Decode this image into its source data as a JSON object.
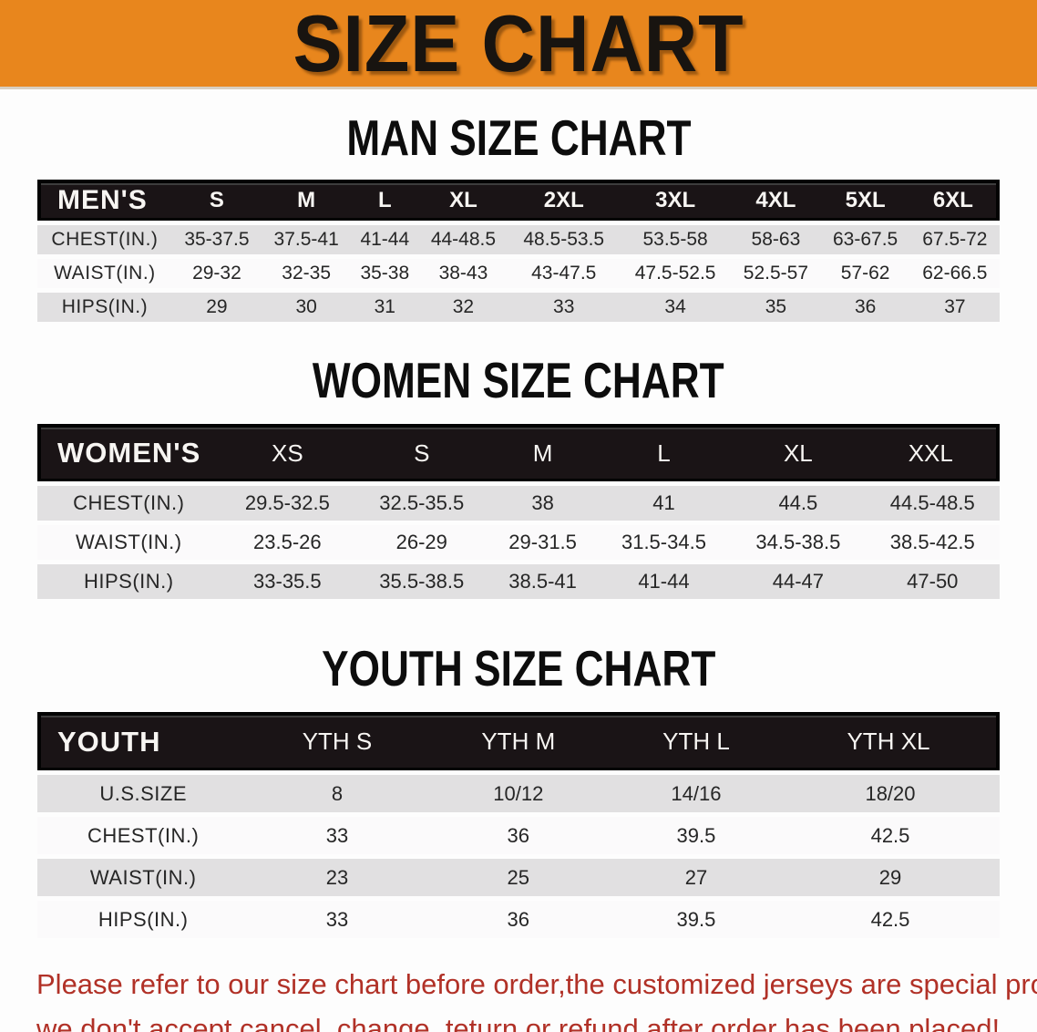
{
  "banner": {
    "title": "SIZE CHART",
    "bg_color": "#E8861D",
    "text_color": "#181410"
  },
  "colors": {
    "table_header_bar": "#1A1416",
    "row_shaded": "#E1E0E1",
    "row_plain": "#FBFAFB",
    "notice_text": "#B13127"
  },
  "sections": [
    {
      "id": "man",
      "heading": "MAN SIZE CHART",
      "table": {
        "header_label": "MEN'S",
        "columns": [
          "S",
          "M",
          "L",
          "XL",
          "2XL",
          "3XL",
          "4XL",
          "5XL",
          "6XL"
        ],
        "rows": [
          {
            "label": "CHEST(IN.)",
            "values": [
              "35-37.5",
              "37.5-41",
              "41-44",
              "44-48.5",
              "48.5-53.5",
              "53.5-58",
              "58-63",
              "63-67.5",
              "67.5-72"
            ]
          },
          {
            "label": "WAIST(IN.)",
            "values": [
              "29-32",
              "32-35",
              "35-38",
              "38-43",
              "43-47.5",
              "47.5-52.5",
              "52.5-57",
              "57-62",
              "62-66.5"
            ]
          },
          {
            "label": "HIPS(IN.)",
            "values": [
              "29",
              "30",
              "31",
              "32",
              "33",
              "34",
              "35",
              "36",
              "37"
            ]
          }
        ]
      }
    },
    {
      "id": "women",
      "heading": "WOMEN SIZE CHART",
      "table": {
        "header_label": "WOMEN'S",
        "columns": [
          "XS",
          "S",
          "M",
          "L",
          "XL",
          "XXL"
        ],
        "rows": [
          {
            "label": "CHEST(IN.)",
            "values": [
              "29.5-32.5",
              "32.5-35.5",
              "38",
              "41",
              "44.5",
              "44.5-48.5"
            ]
          },
          {
            "label": "WAIST(IN.)",
            "values": [
              "23.5-26",
              "26-29",
              "29-31.5",
              "31.5-34.5",
              "34.5-38.5",
              "38.5-42.5"
            ]
          },
          {
            "label": "HIPS(IN.)",
            "values": [
              "33-35.5",
              "35.5-38.5",
              "38.5-41",
              "41-44",
              "44-47",
              "47-50"
            ]
          }
        ]
      }
    },
    {
      "id": "youth",
      "heading": "YOUTH SIZE CHART",
      "table": {
        "header_label": "YOUTH",
        "columns": [
          "YTH S",
          "YTH M",
          "YTH L",
          "YTH XL"
        ],
        "rows": [
          {
            "label": "U.S.SIZE",
            "values": [
              "8",
              "10/12",
              "14/16",
              "18/20"
            ]
          },
          {
            "label": "CHEST(IN.)",
            "values": [
              "33",
              "36",
              "39.5",
              "42.5"
            ]
          },
          {
            "label": "WAIST(IN.)",
            "values": [
              "23",
              "25",
              "27",
              "29"
            ]
          },
          {
            "label": "HIPS(IN.)",
            "values": [
              "33",
              "36",
              "39.5",
              "42.5"
            ]
          }
        ]
      }
    }
  ],
  "footer": {
    "line1": "Please refer to our size chart before order,the customized jerseys are special products,",
    "line2": "we don't accept cancel, change, teturn or refund after order has been placed!"
  }
}
